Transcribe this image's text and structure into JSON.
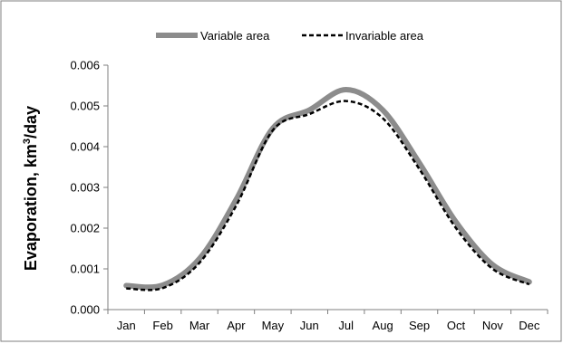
{
  "chart_data": {
    "type": "line",
    "categories": [
      "Jan",
      "Feb",
      "Mar",
      "Apr",
      "May",
      "Jun",
      "Jul",
      "Aug",
      "Sep",
      "Oct",
      "Nov",
      "Dec"
    ],
    "ylabel_main": "Evaporation, km",
    "ylabel_sup": "3",
    "ylabel_unit": "/day",
    "xlabel": "",
    "ylim": [
      0,
      0.006
    ],
    "yticks": [
      "0.000",
      "0.001",
      "0.002",
      "0.003",
      "0.004",
      "0.005",
      "0.006"
    ],
    "legend_position": "top",
    "grid": false,
    "series": [
      {
        "name": "Variable area",
        "color": "#8c8c8c",
        "style": "solid",
        "values": [
          0.00059,
          0.0006,
          0.00125,
          0.0027,
          0.00445,
          0.0049,
          0.0054,
          0.0049,
          0.0036,
          0.00215,
          0.0011,
          0.00068
        ]
      },
      {
        "name": "Invariable area",
        "color": "#000000",
        "style": "dashed",
        "values": [
          0.00052,
          0.00053,
          0.00115,
          0.00255,
          0.0044,
          0.0048,
          0.00512,
          0.0047,
          0.00345,
          0.002,
          0.001,
          0.00062
        ]
      }
    ]
  }
}
